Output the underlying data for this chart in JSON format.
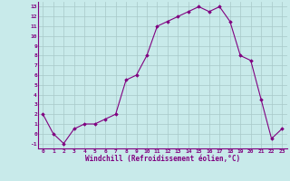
{
  "x": [
    0,
    1,
    2,
    3,
    4,
    5,
    6,
    7,
    8,
    9,
    10,
    11,
    12,
    13,
    14,
    15,
    16,
    17,
    18,
    19,
    20,
    21,
    22,
    23
  ],
  "y": [
    2,
    0,
    -1,
    0.5,
    1,
    1,
    1.5,
    2,
    5.5,
    6,
    8,
    11,
    11.5,
    12,
    12.5,
    13,
    12.5,
    13,
    11.5,
    8,
    7.5,
    3.5,
    -0.5,
    0.5
  ],
  "line_color": "#800080",
  "marker_color": "#800080",
  "bg_color": "#c8eaea",
  "grid_color": "#a8c8c8",
  "xlabel": "Windchill (Refroidissement éolien,°C)",
  "ylim": [
    -1.5,
    13.5
  ],
  "xlim": [
    -0.5,
    23.5
  ],
  "yticks": [
    -1,
    0,
    1,
    2,
    3,
    4,
    5,
    6,
    7,
    8,
    9,
    10,
    11,
    12,
    13
  ],
  "xticks": [
    0,
    1,
    2,
    3,
    4,
    5,
    6,
    7,
    8,
    9,
    10,
    11,
    12,
    13,
    14,
    15,
    16,
    17,
    18,
    19,
    20,
    21,
    22,
    23
  ]
}
